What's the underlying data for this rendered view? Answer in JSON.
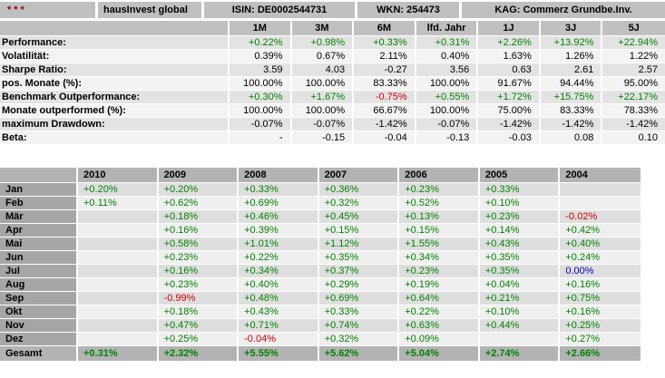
{
  "title_bar": {
    "rating_stars": "***",
    "fund_name": "hausInvest global",
    "isin": "ISIN: DE0002544731",
    "wkn": "WKN: 254473",
    "kag": "KAG: Commerz Grundbe.Inv."
  },
  "colors": {
    "positive": "#008200",
    "negative": "#cc0000",
    "zero": "#0000c0",
    "header_bg": "#c0c0c0",
    "year_header_bg": "#b3b3b3",
    "month_label_bg": "#a6a6a6",
    "stars": "#990000"
  },
  "key_figures_table": {
    "columns": [
      "1M",
      "3M",
      "6M",
      "lfd. Jahr",
      "1J",
      "3J",
      "5J"
    ],
    "rows": [
      {
        "label": "Performance:",
        "colored": true,
        "values": [
          "+0.22%",
          "+0.98%",
          "+0.33%",
          "+0.31%",
          "+2.26%",
          "+13.92%",
          "+22.94%"
        ]
      },
      {
        "label": "Volatilität:",
        "colored": false,
        "values": [
          "0.39%",
          "0.67%",
          "2.11%",
          "0.40%",
          "1.63%",
          "1.26%",
          "1.22%"
        ]
      },
      {
        "label": "Sharpe Ratio:",
        "colored": false,
        "values": [
          "3.59",
          "4.03",
          "-0.27",
          "3.56",
          "0.63",
          "2.61",
          "2.57"
        ]
      },
      {
        "label": "pos. Monate (%):",
        "colored": false,
        "values": [
          "100.00%",
          "100.00%",
          "83.33%",
          "100.00%",
          "91.67%",
          "94.44%",
          "95.00%"
        ]
      },
      {
        "label": "Benchmark Outperformance:",
        "colored": true,
        "values": [
          "+0.30%",
          "+1.67%",
          "-0.75%",
          "+0.55%",
          "+1.72%",
          "+15.75%",
          "+22.17%"
        ]
      },
      {
        "label": "Monate outperformed (%):",
        "colored": false,
        "values": [
          "100.00%",
          "100.00%",
          "66.67%",
          "100.00%",
          "75.00%",
          "83.33%",
          "78.33%"
        ]
      },
      {
        "label": "maximum Drawdown:",
        "colored": false,
        "values": [
          "-0.07%",
          "-0.07%",
          "-1.42%",
          "-0.07%",
          "-1.42%",
          "-1.42%",
          "-1.42%"
        ]
      },
      {
        "label": "Beta:",
        "colored": false,
        "values": [
          "-",
          "-0.15",
          "-0.04",
          "-0.13",
          "-0.03",
          "0.08",
          "0.10"
        ]
      }
    ]
  },
  "monthly_returns_table": {
    "columns": [
      "2010",
      "2009",
      "2008",
      "2007",
      "2006",
      "2005",
      "2004"
    ],
    "rows": [
      {
        "label": "Jan",
        "values": [
          "+0.20%",
          "+0.20%",
          "+0.33%",
          "+0.36%",
          "+0.23%",
          "+0.33%",
          ""
        ]
      },
      {
        "label": "Feb",
        "values": [
          "+0.11%",
          "+0.62%",
          "+0.69%",
          "+0.32%",
          "+0.52%",
          "+0.10%",
          ""
        ]
      },
      {
        "label": "Mär",
        "values": [
          "",
          "+0.18%",
          "+0.46%",
          "+0.45%",
          "+0.13%",
          "+0.23%",
          "-0.02%"
        ]
      },
      {
        "label": "Apr",
        "values": [
          "",
          "+0.16%",
          "+0.39%",
          "+0.15%",
          "+0.15%",
          "+0.14%",
          "+0.42%"
        ]
      },
      {
        "label": "Mai",
        "values": [
          "",
          "+0.58%",
          "+1.01%",
          "+1.12%",
          "+1.55%",
          "+0.43%",
          "+0.40%"
        ]
      },
      {
        "label": "Jun",
        "values": [
          "",
          "+0.23%",
          "+0.22%",
          "+0.35%",
          "+0.34%",
          "+0.35%",
          "+0.24%"
        ]
      },
      {
        "label": "Jul",
        "values": [
          "",
          "+0.16%",
          "+0.34%",
          "+0.37%",
          "+0.23%",
          "+0.35%",
          "0.00%"
        ]
      },
      {
        "label": "Aug",
        "values": [
          "",
          "+0.23%",
          "+0.40%",
          "+0.29%",
          "+0.19%",
          "+0.04%",
          "+0.16%"
        ]
      },
      {
        "label": "Sep",
        "values": [
          "",
          "-0.99%",
          "+0.48%",
          "+0.69%",
          "+0.64%",
          "+0.21%",
          "+0.75%"
        ]
      },
      {
        "label": "Okt",
        "values": [
          "",
          "+0.18%",
          "+0.43%",
          "+0.33%",
          "+0.22%",
          "+0.10%",
          "+0.16%"
        ]
      },
      {
        "label": "Nov",
        "values": [
          "",
          "+0.47%",
          "+0.71%",
          "+0.74%",
          "+0.63%",
          "+0.44%",
          "+0.25%"
        ]
      },
      {
        "label": "Dez",
        "values": [
          "",
          "+0.25%",
          "-0.04%",
          "+0.32%",
          "+0.09%",
          "",
          "+0.27%"
        ]
      }
    ],
    "total_row": {
      "label": "Gesamt",
      "values": [
        "+0.31%",
        "+2.32%",
        "+5.55%",
        "+5.62%",
        "+5.04%",
        "+2.74%",
        "+2.66%"
      ]
    }
  }
}
